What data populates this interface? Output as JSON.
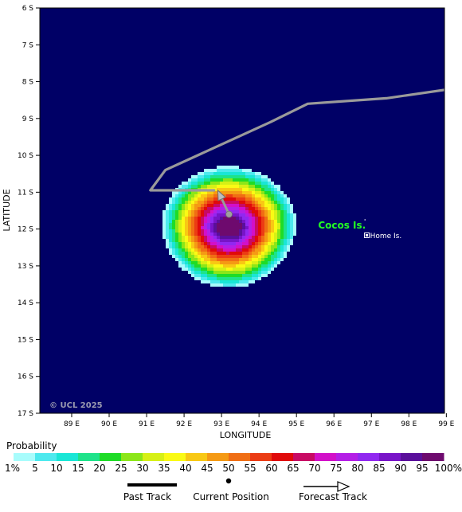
{
  "map": {
    "axes": {
      "xlabel": "LONGITUDE",
      "ylabel": "LATITUDE",
      "lon_ticks": [
        89,
        90,
        91,
        92,
        93,
        94,
        95,
        96,
        97,
        98,
        99
      ],
      "lon_labels": [
        "89 E",
        "90 E",
        "91 E",
        "92 E",
        "93 E",
        "94 E",
        "95 E",
        "96 E",
        "97 E",
        "98 E",
        "99 E"
      ],
      "lat_ticks": [
        6,
        7,
        8,
        9,
        10,
        11,
        12,
        13,
        14,
        15,
        16,
        17
      ],
      "lat_labels": [
        "6 S",
        "7 S",
        "8 S",
        "9 S",
        "10 S",
        "11 S",
        "12 S",
        "13 S",
        "14 S",
        "15 S",
        "16 S",
        "17 S"
      ],
      "lon_range": [
        88.15,
        98.95
      ],
      "lat_range": [
        6.0,
        17.0
      ]
    },
    "colors": {
      "background": "#000066",
      "track": "#9a9a9a"
    },
    "copyright": "© UCL 2025",
    "islands": [
      {
        "label": "Cocos Is.",
        "lon": 96.85,
        "lat": 11.9,
        "color": "#22ff22"
      },
      {
        "label": "Home Is.",
        "lon": 96.9,
        "lat": 12.17,
        "color": "#ffffff"
      }
    ],
    "past_track": [
      {
        "lon": 99.1,
        "lat": 8.2
      },
      {
        "lon": 97.4,
        "lat": 8.45
      },
      {
        "lon": 95.3,
        "lat": 8.6
      },
      {
        "lon": 94.3,
        "lat": 9.1
      },
      {
        "lon": 91.5,
        "lat": 10.4
      },
      {
        "lon": 91.1,
        "lat": 10.95
      },
      {
        "lon": 92.8,
        "lat": 10.95
      }
    ],
    "current_position": {
      "lon": 93.2,
      "lat": 11.6
    },
    "forecast_track": [
      {
        "lon": 93.2,
        "lat": 11.6
      },
      {
        "lon": 92.9,
        "lat": 10.95
      }
    ],
    "probability_field": {
      "center": {
        "lon": 93.2,
        "lat": 11.95
      },
      "levels": [
        1,
        5,
        10,
        15,
        20,
        25,
        30,
        35,
        40,
        45,
        50,
        55,
        60,
        65,
        70,
        75,
        80,
        85,
        90,
        95
      ]
    }
  },
  "legend": {
    "title": "Probability",
    "labels": [
      "1%",
      "5",
      "10",
      "15",
      "20",
      "25",
      "30",
      "35",
      "40",
      "45",
      "50",
      "55",
      "60",
      "65",
      "70",
      "75",
      "80",
      "85",
      "90",
      "95",
      "100%"
    ],
    "colors": [
      "#a8fcfc",
      "#4de9ee",
      "#19e6d6",
      "#1ee38a",
      "#1fdc27",
      "#8ce619",
      "#d6f016",
      "#fafa14",
      "#f8c814",
      "#f59a14",
      "#f06e14",
      "#eb3c14",
      "#e00a0a",
      "#c80a64",
      "#d210c8",
      "#b41ee6",
      "#9128f0",
      "#7814c8",
      "#5a0f9b",
      "#6e0a6e"
    ],
    "keys": {
      "past_track": "Past Track",
      "current_position": "Current Position",
      "forecast_track": "Forecast Track"
    }
  }
}
